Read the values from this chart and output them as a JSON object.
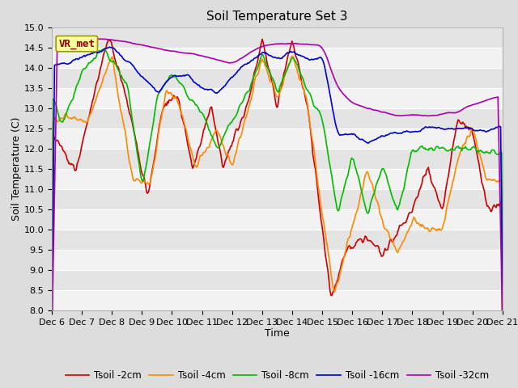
{
  "title": "Soil Temperature Set 3",
  "xlabel": "Time",
  "ylabel": "Soil Temperature (C)",
  "ylim": [
    8.0,
    15.0
  ],
  "yticks": [
    8.0,
    8.5,
    9.0,
    9.5,
    10.0,
    10.5,
    11.0,
    11.5,
    12.0,
    12.5,
    13.0,
    13.5,
    14.0,
    14.5,
    15.0
  ],
  "xtick_labels": [
    "Dec 6",
    "Dec 7",
    "Dec 8",
    "Dec 9",
    "Dec 10",
    "Dec 11",
    "Dec 12",
    "Dec 13",
    "Dec 14",
    "Dec 15",
    "Dec 16",
    "Dec 17",
    "Dec 18",
    "Dec 19",
    "Dec 20",
    "Dec 21"
  ],
  "colors": {
    "t2cm": "#cc0000",
    "t4cm": "#ff8800",
    "t8cm": "#00bb00",
    "t16cm": "#0000cc",
    "t32cm": "#aa00aa"
  },
  "legend_entries": [
    "Tsoil -2cm",
    "Tsoil -4cm",
    "Tsoil -8cm",
    "Tsoil -16cm",
    "Tsoil -32cm"
  ],
  "vr_met_label": "VR_met",
  "bg_color": "#dddddd",
  "plot_bg_color_light": "#f2f2f2",
  "plot_bg_color_dark": "#e4e4e4",
  "grid_color": "#ffffff",
  "title_fontsize": 11,
  "axis_label_fontsize": 9,
  "tick_fontsize": 8,
  "legend_fontsize": 8.5,
  "linewidth": 1.2
}
